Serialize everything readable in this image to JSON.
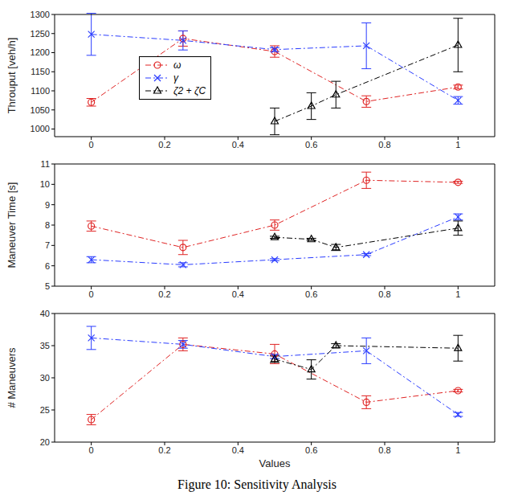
{
  "caption": "Figure 10: Sensitivity Analysis",
  "chart_data": [
    {
      "type": "line",
      "y_label": "Throuput [veh/h]",
      "xlim": [
        -0.1,
        1.1
      ],
      "xticks": [
        0,
        0.2,
        0.4,
        0.6,
        0.8,
        1
      ],
      "ylim": [
        980,
        1300
      ],
      "yticks": [
        1000,
        1050,
        1100,
        1150,
        1200,
        1250,
        1300
      ],
      "grid": false,
      "legend": "center",
      "series": [
        {
          "name": "ω",
          "color": "#e02424",
          "marker": "circle",
          "line_style": "dashdot",
          "x": [
            0,
            0.25,
            0.5,
            0.75,
            1
          ],
          "values": [
            1070,
            1237,
            1203,
            1072,
            1110
          ],
          "errors": [
            10,
            20,
            15,
            15,
            5
          ]
        },
        {
          "name": "γ",
          "color": "#2a3cff",
          "marker": "x",
          "line_style": "dashdot",
          "x": [
            0,
            0.25,
            0.5,
            0.75,
            1
          ],
          "values": [
            1248,
            1232,
            1208,
            1218,
            1075
          ],
          "errors": [
            55,
            25,
            5,
            60,
            10
          ]
        },
        {
          "name": "ζ2 + ζC",
          "color": "#000000",
          "marker": "triangle",
          "line_style": "dashdot",
          "x": [
            0.5,
            0.6,
            0.667,
            1
          ],
          "values": [
            1020,
            1060,
            1090,
            1220
          ],
          "errors": [
            35,
            35,
            35,
            70
          ]
        }
      ]
    },
    {
      "type": "line",
      "y_label": "Maneuver Time [s]",
      "xlim": [
        -0.1,
        1.1
      ],
      "xticks": [
        0,
        0.2,
        0.4,
        0.6,
        0.8,
        1
      ],
      "ylim": [
        5,
        11
      ],
      "yticks": [
        5,
        6,
        7,
        8,
        9,
        10,
        11
      ],
      "grid": false,
      "series": [
        {
          "name": "ω",
          "color": "#e02424",
          "marker": "circle",
          "line_style": "dashdot",
          "x": [
            0,
            0.25,
            0.5,
            0.75,
            1
          ],
          "values": [
            7.95,
            6.9,
            8.0,
            10.2,
            10.1
          ],
          "errors": [
            0.25,
            0.35,
            0.25,
            0.4,
            0.05
          ]
        },
        {
          "name": "γ",
          "color": "#2a3cff",
          "marker": "x",
          "line_style": "dashdot",
          "x": [
            0,
            0.25,
            0.5,
            0.75,
            1
          ],
          "values": [
            6.3,
            6.05,
            6.3,
            6.55,
            8.4
          ],
          "errors": [
            0.15,
            0.1,
            0.05,
            0.05,
            0.15
          ]
        },
        {
          "name": "ζ2 + ζC",
          "color": "#000000",
          "marker": "triangle",
          "line_style": "dashdot",
          "x": [
            0.5,
            0.6,
            0.667,
            1
          ],
          "values": [
            7.4,
            7.3,
            6.9,
            7.85
          ],
          "errors": [
            0.05,
            0.05,
            0.15,
            0.35
          ]
        }
      ]
    },
    {
      "type": "line",
      "y_label": "# Maneuvers",
      "x_label": "Values",
      "xlim": [
        -0.1,
        1.1
      ],
      "xticks": [
        0,
        0.2,
        0.4,
        0.6,
        0.8,
        1
      ],
      "ylim": [
        20,
        40
      ],
      "yticks": [
        20,
        25,
        30,
        35,
        40
      ],
      "grid": false,
      "series": [
        {
          "name": "ω",
          "color": "#e02424",
          "marker": "circle",
          "line_style": "dashdot",
          "x": [
            0,
            0.25,
            0.5,
            0.75,
            1
          ],
          "values": [
            23.5,
            35.2,
            33.7,
            26.2,
            28
          ],
          "errors": [
            0.8,
            1,
            1.5,
            1,
            0.2
          ]
        },
        {
          "name": "γ",
          "color": "#2a3cff",
          "marker": "x",
          "line_style": "dashdot",
          "x": [
            0,
            0.25,
            0.5,
            0.75,
            1
          ],
          "values": [
            36.2,
            35.2,
            33.3,
            34.2,
            24.3
          ],
          "errors": [
            1.8,
            0.6,
            0.3,
            2,
            0.3
          ]
        },
        {
          "name": "ζ2 + ζC",
          "color": "#000000",
          "marker": "triangle",
          "line_style": "dashdot",
          "x": [
            0.5,
            0.6,
            0.667,
            1
          ],
          "values": [
            32.9,
            31.3,
            35,
            34.6
          ],
          "errors": [
            0.5,
            1.5,
            0.3,
            2
          ]
        }
      ]
    }
  ]
}
